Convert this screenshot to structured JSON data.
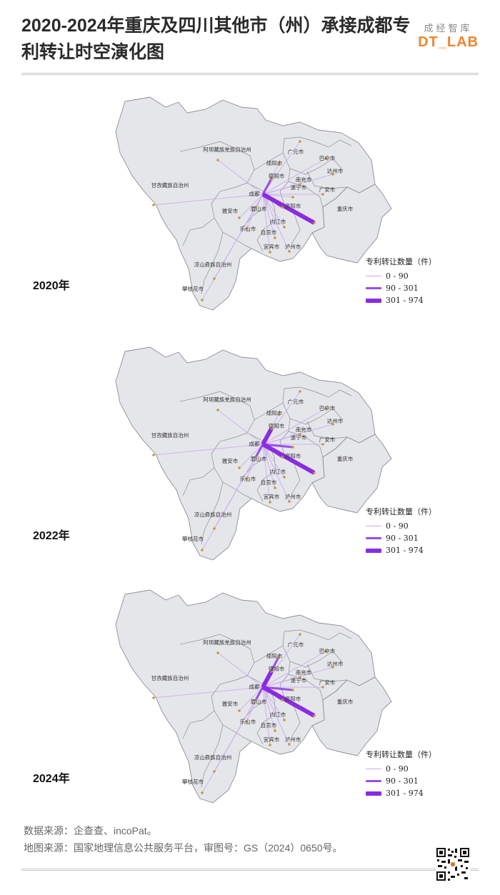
{
  "title": "2020-2024年重庆及四川其他市（州）承接成都专利转让时空演化图",
  "brand": {
    "cn": "成经智库",
    "en": "DT_LAB"
  },
  "legend": {
    "title": "专利转让数量（件）",
    "items": [
      {
        "label": "0 - 90",
        "color": "#c9a8f2",
        "width": 1
      },
      {
        "label": "90 - 301",
        "color": "#9b4ded",
        "width": 3
      },
      {
        "label": "301 - 974",
        "color": "#8a2be2",
        "width": 6
      }
    ]
  },
  "city_labels": [
    "阿坝藏族羌族自治州",
    "甘孜藏族自治州",
    "凉山彝族自治州",
    "攀枝花市",
    "广元市",
    "巴中市",
    "绵阳市",
    "南充市",
    "达州市",
    "德阳市",
    "遂宁市",
    "广安市",
    "成都",
    "资阳市",
    "眉山市",
    "雅安市",
    "乐山市",
    "内江市",
    "自贡市",
    "宜宾市",
    "泸州市",
    "重庆市"
  ],
  "panels": [
    {
      "year": "2020年",
      "flows": [
        {
          "to": "重庆市",
          "band": 2
        },
        {
          "to": "资阳市",
          "band": 1
        },
        {
          "to": "德阳市",
          "band": 1
        },
        {
          "to": "绵阳市",
          "band": 0
        },
        {
          "to": "眉山市",
          "band": 0
        },
        {
          "to": "遂宁市",
          "band": 0
        },
        {
          "to": "南充市",
          "band": 0
        },
        {
          "to": "广安市",
          "band": 0
        },
        {
          "to": "达州市",
          "band": 0
        },
        {
          "to": "内江市",
          "band": 0
        },
        {
          "to": "自贡市",
          "band": 0
        },
        {
          "to": "乐山市",
          "band": 0
        },
        {
          "to": "宜宾市",
          "band": 0
        },
        {
          "to": "泸州市",
          "band": 0
        },
        {
          "to": "雅安市",
          "band": 0
        },
        {
          "to": "阿坝藏族羌族自治州",
          "band": 0
        },
        {
          "to": "甘孜藏族自治州",
          "band": 0
        },
        {
          "to": "凉山彝族自治州",
          "band": 0
        },
        {
          "to": "攀枝花市",
          "band": 0
        },
        {
          "to": "广元市",
          "band": 0
        },
        {
          "to": "巴中市",
          "band": 0
        }
      ]
    },
    {
      "year": "2022年",
      "flows": [
        {
          "to": "重庆市",
          "band": 2
        },
        {
          "to": "德阳市",
          "band": 2
        },
        {
          "to": "眉山市",
          "band": 1
        },
        {
          "to": "资阳市",
          "band": 1
        },
        {
          "to": "遂宁市",
          "band": 1
        },
        {
          "to": "绵阳市",
          "band": 0
        },
        {
          "to": "南充市",
          "band": 0
        },
        {
          "to": "广安市",
          "band": 0
        },
        {
          "to": "达州市",
          "band": 0
        },
        {
          "to": "内江市",
          "band": 0
        },
        {
          "to": "自贡市",
          "band": 0
        },
        {
          "to": "乐山市",
          "band": 0
        },
        {
          "to": "宜宾市",
          "band": 0
        },
        {
          "to": "泸州市",
          "band": 0
        },
        {
          "to": "雅安市",
          "band": 0
        },
        {
          "to": "阿坝藏族羌族自治州",
          "band": 0
        },
        {
          "to": "甘孜藏族自治州",
          "band": 0
        },
        {
          "to": "凉山彝族自治州",
          "band": 0
        },
        {
          "to": "攀枝花市",
          "band": 0
        },
        {
          "to": "广元市",
          "band": 0
        },
        {
          "to": "巴中市",
          "band": 0
        }
      ]
    },
    {
      "year": "2024年",
      "flows": [
        {
          "to": "重庆市",
          "band": 2
        },
        {
          "to": "德阳市",
          "band": 2
        },
        {
          "to": "眉山市",
          "band": 1
        },
        {
          "to": "资阳市",
          "band": 1
        },
        {
          "to": "遂宁市",
          "band": 1
        },
        {
          "to": "绵阳市",
          "band": 1
        },
        {
          "to": "南充市",
          "band": 0
        },
        {
          "to": "广安市",
          "band": 0
        },
        {
          "to": "达州市",
          "band": 0
        },
        {
          "to": "内江市",
          "band": 0
        },
        {
          "to": "自贡市",
          "band": 0
        },
        {
          "to": "乐山市",
          "band": 0
        },
        {
          "to": "宜宾市",
          "band": 0
        },
        {
          "to": "泸州市",
          "band": 0
        },
        {
          "to": "雅安市",
          "band": 0
        },
        {
          "to": "阿坝藏族羌族自治州",
          "band": 0
        },
        {
          "to": "甘孜藏族自治州",
          "band": 0
        },
        {
          "to": "凉山彝族自治州",
          "band": 0
        },
        {
          "to": "攀枝花市",
          "band": 0
        },
        {
          "to": "广元市",
          "band": 0
        },
        {
          "to": "巴中市",
          "band": 0
        }
      ]
    }
  ],
  "footer": {
    "data_source": "数据来源：企查查、incoPat。",
    "map_source": "地图来源：国家地理信息公共服务平台，审图号：GS（2024）0650号。"
  }
}
